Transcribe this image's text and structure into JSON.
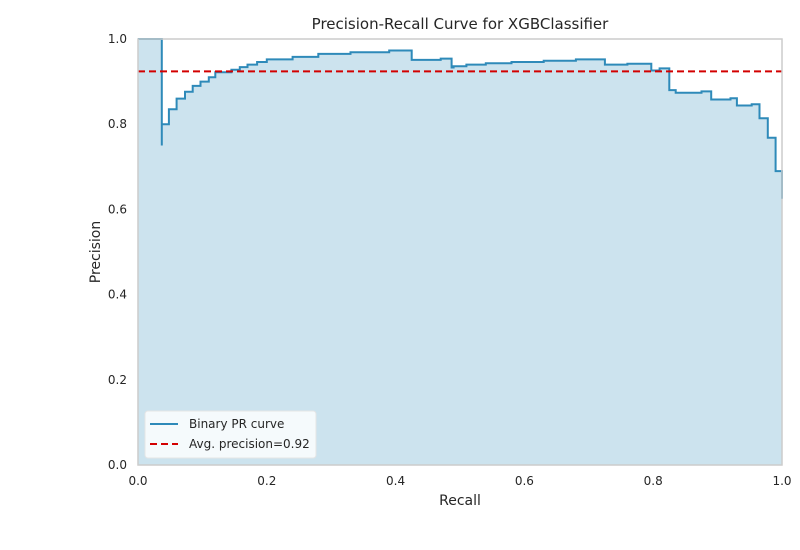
{
  "chart_data": {
    "type": "line",
    "title": "Precision-Recall Curve for XGBClassifier",
    "xlabel": "Recall",
    "ylabel": "Precision",
    "xlim": [
      0.0,
      1.0
    ],
    "ylim": [
      0.0,
      1.0
    ],
    "xticks": [
      "0.0",
      "0.2",
      "0.4",
      "0.6",
      "0.8",
      "1.0"
    ],
    "yticks": [
      "0.0",
      "0.2",
      "0.4",
      "0.6",
      "0.8",
      "1.0"
    ],
    "grid": false,
    "legend_position": "lower-left",
    "series": [
      {
        "name": "Binary PR curve",
        "style": "step",
        "color": "#2e8ab9",
        "fill": "#cce3ee",
        "points": [
          [
            1.0,
            0.625
          ],
          [
            1.0,
            0.69
          ],
          [
            0.99,
            0.69
          ],
          [
            0.99,
            0.768
          ],
          [
            0.978,
            0.768
          ],
          [
            0.978,
            0.814
          ],
          [
            0.965,
            0.814
          ],
          [
            0.965,
            0.847
          ],
          [
            0.953,
            0.847
          ],
          [
            0.953,
            0.844
          ],
          [
            0.93,
            0.844
          ],
          [
            0.93,
            0.861
          ],
          [
            0.92,
            0.861
          ],
          [
            0.92,
            0.858
          ],
          [
            0.89,
            0.858
          ],
          [
            0.89,
            0.877
          ],
          [
            0.875,
            0.877
          ],
          [
            0.875,
            0.874
          ],
          [
            0.835,
            0.874
          ],
          [
            0.835,
            0.88
          ],
          [
            0.825,
            0.88
          ],
          [
            0.825,
            0.931
          ],
          [
            0.81,
            0.931
          ],
          [
            0.81,
            0.926
          ],
          [
            0.797,
            0.926
          ],
          [
            0.797,
            0.942
          ],
          [
            0.76,
            0.942
          ],
          [
            0.76,
            0.94
          ],
          [
            0.725,
            0.94
          ],
          [
            0.725,
            0.952
          ],
          [
            0.68,
            0.952
          ],
          [
            0.68,
            0.949
          ],
          [
            0.63,
            0.949
          ],
          [
            0.63,
            0.946
          ],
          [
            0.58,
            0.946
          ],
          [
            0.58,
            0.943
          ],
          [
            0.54,
            0.943
          ],
          [
            0.54,
            0.94
          ],
          [
            0.51,
            0.94
          ],
          [
            0.51,
            0.936
          ],
          [
            0.49,
            0.936
          ],
          [
            0.49,
            0.933
          ],
          [
            0.487,
            0.933
          ],
          [
            0.487,
            0.954
          ],
          [
            0.47,
            0.954
          ],
          [
            0.47,
            0.951
          ],
          [
            0.425,
            0.951
          ],
          [
            0.425,
            0.973
          ],
          [
            0.39,
            0.973
          ],
          [
            0.39,
            0.969
          ],
          [
            0.33,
            0.969
          ],
          [
            0.33,
            0.965
          ],
          [
            0.28,
            0.965
          ],
          [
            0.28,
            0.958
          ],
          [
            0.24,
            0.958
          ],
          [
            0.24,
            0.952
          ],
          [
            0.2,
            0.952
          ],
          [
            0.2,
            0.946
          ],
          [
            0.185,
            0.946
          ],
          [
            0.185,
            0.94
          ],
          [
            0.17,
            0.94
          ],
          [
            0.17,
            0.934
          ],
          [
            0.158,
            0.934
          ],
          [
            0.158,
            0.928
          ],
          [
            0.145,
            0.928
          ],
          [
            0.145,
            0.922
          ],
          [
            0.12,
            0.922
          ],
          [
            0.12,
            0.91
          ],
          [
            0.11,
            0.91
          ],
          [
            0.11,
            0.9
          ],
          [
            0.097,
            0.9
          ],
          [
            0.097,
            0.89
          ],
          [
            0.085,
            0.89
          ],
          [
            0.085,
            0.876
          ],
          [
            0.073,
            0.876
          ],
          [
            0.073,
            0.86
          ],
          [
            0.06,
            0.86
          ],
          [
            0.06,
            0.835
          ],
          [
            0.048,
            0.835
          ],
          [
            0.048,
            0.8
          ],
          [
            0.037,
            0.8
          ],
          [
            0.037,
            0.75
          ],
          [
            0.037,
            1.0
          ],
          [
            0.0,
            1.0
          ]
        ]
      },
      {
        "name": "Avg. precision=0.92",
        "style": "dashed",
        "color": "#d30000",
        "y": 0.924
      }
    ]
  }
}
